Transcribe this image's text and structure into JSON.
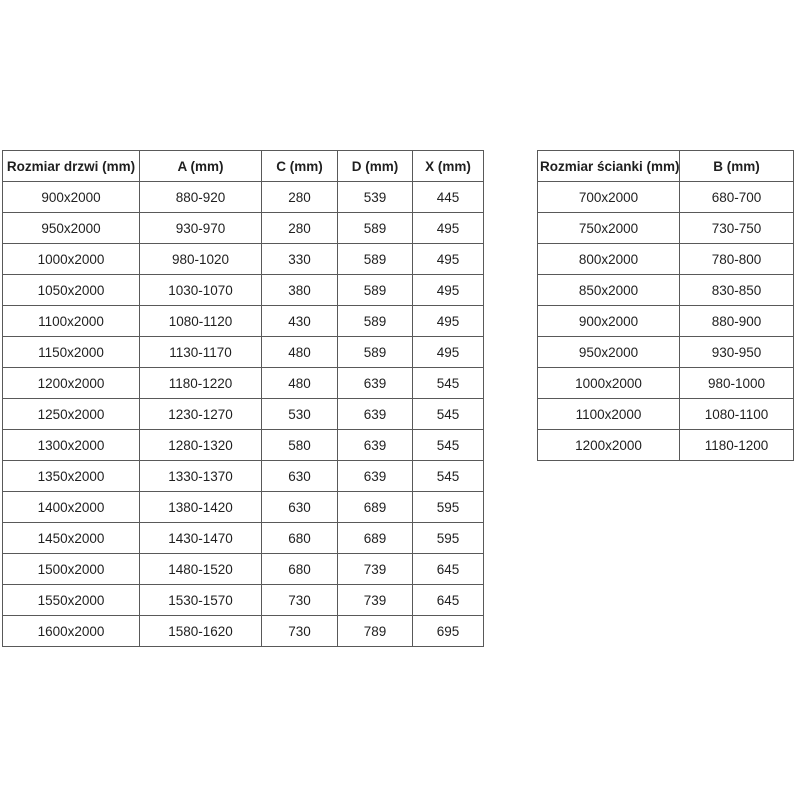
{
  "page": {
    "background": "#ffffff",
    "text_color": "#1f1f1f",
    "border_color": "#595959"
  },
  "door_table": {
    "title": "Rozmiar drzwi (mm)",
    "headers": [
      "Rozmiar drzwi (mm)",
      "A (mm)",
      "C (mm)",
      "D (mm)",
      "X (mm)"
    ],
    "rows": [
      [
        "900x2000",
        "880-920",
        "280",
        "539",
        "445"
      ],
      [
        "950x2000",
        "930-970",
        "280",
        "589",
        "495"
      ],
      [
        "1000x2000",
        "980-1020",
        "330",
        "589",
        "495"
      ],
      [
        "1050x2000",
        "1030-1070",
        "380",
        "589",
        "495"
      ],
      [
        "1100x2000",
        "1080-1120",
        "430",
        "589",
        "495"
      ],
      [
        "1150x2000",
        "1130-1170",
        "480",
        "589",
        "495"
      ],
      [
        "1200x2000",
        "1180-1220",
        "480",
        "639",
        "545"
      ],
      [
        "1250x2000",
        "1230-1270",
        "530",
        "639",
        "545"
      ],
      [
        "1300x2000",
        "1280-1320",
        "580",
        "639",
        "545"
      ],
      [
        "1350x2000",
        "1330-1370",
        "630",
        "639",
        "545"
      ],
      [
        "1400x2000",
        "1380-1420",
        "630",
        "689",
        "595"
      ],
      [
        "1450x2000",
        "1430-1470",
        "680",
        "689",
        "595"
      ],
      [
        "1500x2000",
        "1480-1520",
        "680",
        "739",
        "645"
      ],
      [
        "1550x2000",
        "1530-1570",
        "730",
        "739",
        "645"
      ],
      [
        "1600x2000",
        "1580-1620",
        "730",
        "789",
        "695"
      ]
    ]
  },
  "wall_table": {
    "title": "Rozmiar ścianki (mm)",
    "headers": [
      "Rozmiar ścianki (mm)",
      "B (mm)"
    ],
    "rows": [
      [
        "700x2000",
        "680-700"
      ],
      [
        "750x2000",
        "730-750"
      ],
      [
        "800x2000",
        "780-800"
      ],
      [
        "850x2000",
        "830-850"
      ],
      [
        "900x2000",
        "880-900"
      ],
      [
        "950x2000",
        "930-950"
      ],
      [
        "1000x2000",
        "980-1000"
      ],
      [
        "1100x2000",
        "1080-1100"
      ],
      [
        "1200x2000",
        "1180-1200"
      ]
    ]
  }
}
